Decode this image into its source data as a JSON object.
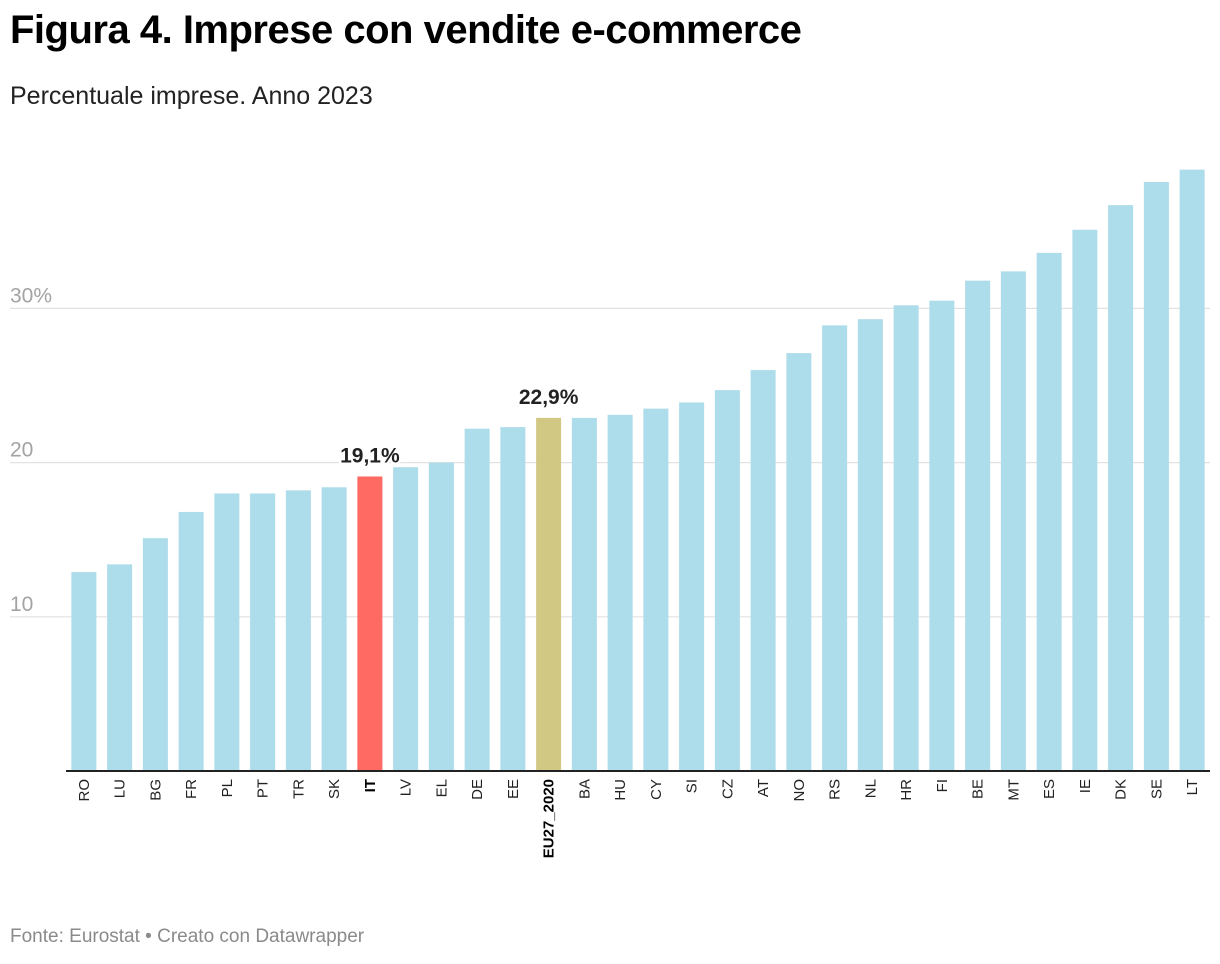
{
  "header": {
    "title": "Figura 4. Imprese con vendite e-commerce",
    "subtitle": "Percentuale imprese. Anno 2023"
  },
  "footer": {
    "source": "Fonte: Eurostat • Creato con Datawrapper"
  },
  "chart_data": {
    "type": "bar",
    "title": "Figura 4. Imprese con vendite e-commerce",
    "subtitle": "Percentuale imprese. Anno 2023",
    "xlabel": "",
    "ylabel": "",
    "ylim": [
      0,
      40
    ],
    "y_ticks": [
      10,
      20,
      30
    ],
    "y_tick_labels": [
      "10",
      "20",
      "30%"
    ],
    "grid": true,
    "legend": "none",
    "categories": [
      "RO",
      "LU",
      "BG",
      "FR",
      "PL",
      "PT",
      "TR",
      "SK",
      "IT",
      "LV",
      "EL",
      "DE",
      "EE",
      "EU27_2020",
      "BA",
      "HU",
      "CY",
      "SI",
      "CZ",
      "AT",
      "NO",
      "RS",
      "NL",
      "HR",
      "FI",
      "BE",
      "MT",
      "ES",
      "IE",
      "DK",
      "SE",
      "LT"
    ],
    "values": [
      12.9,
      13.4,
      15.1,
      16.8,
      18.0,
      18.0,
      18.2,
      18.4,
      19.1,
      19.7,
      20.0,
      22.2,
      22.3,
      22.9,
      22.9,
      23.1,
      23.5,
      23.9,
      24.7,
      26.0,
      27.1,
      28.9,
      29.3,
      30.2,
      30.5,
      31.8,
      32.4,
      33.6,
      35.1,
      36.7,
      38.2,
      39.0
    ],
    "highlights": {
      "IT": {
        "color": "#ff6b63",
        "label": "19,1%"
      },
      "EU27_2020": {
        "color": "#d1c883",
        "label": "22,9%"
      }
    },
    "base_color": "#addcea"
  }
}
